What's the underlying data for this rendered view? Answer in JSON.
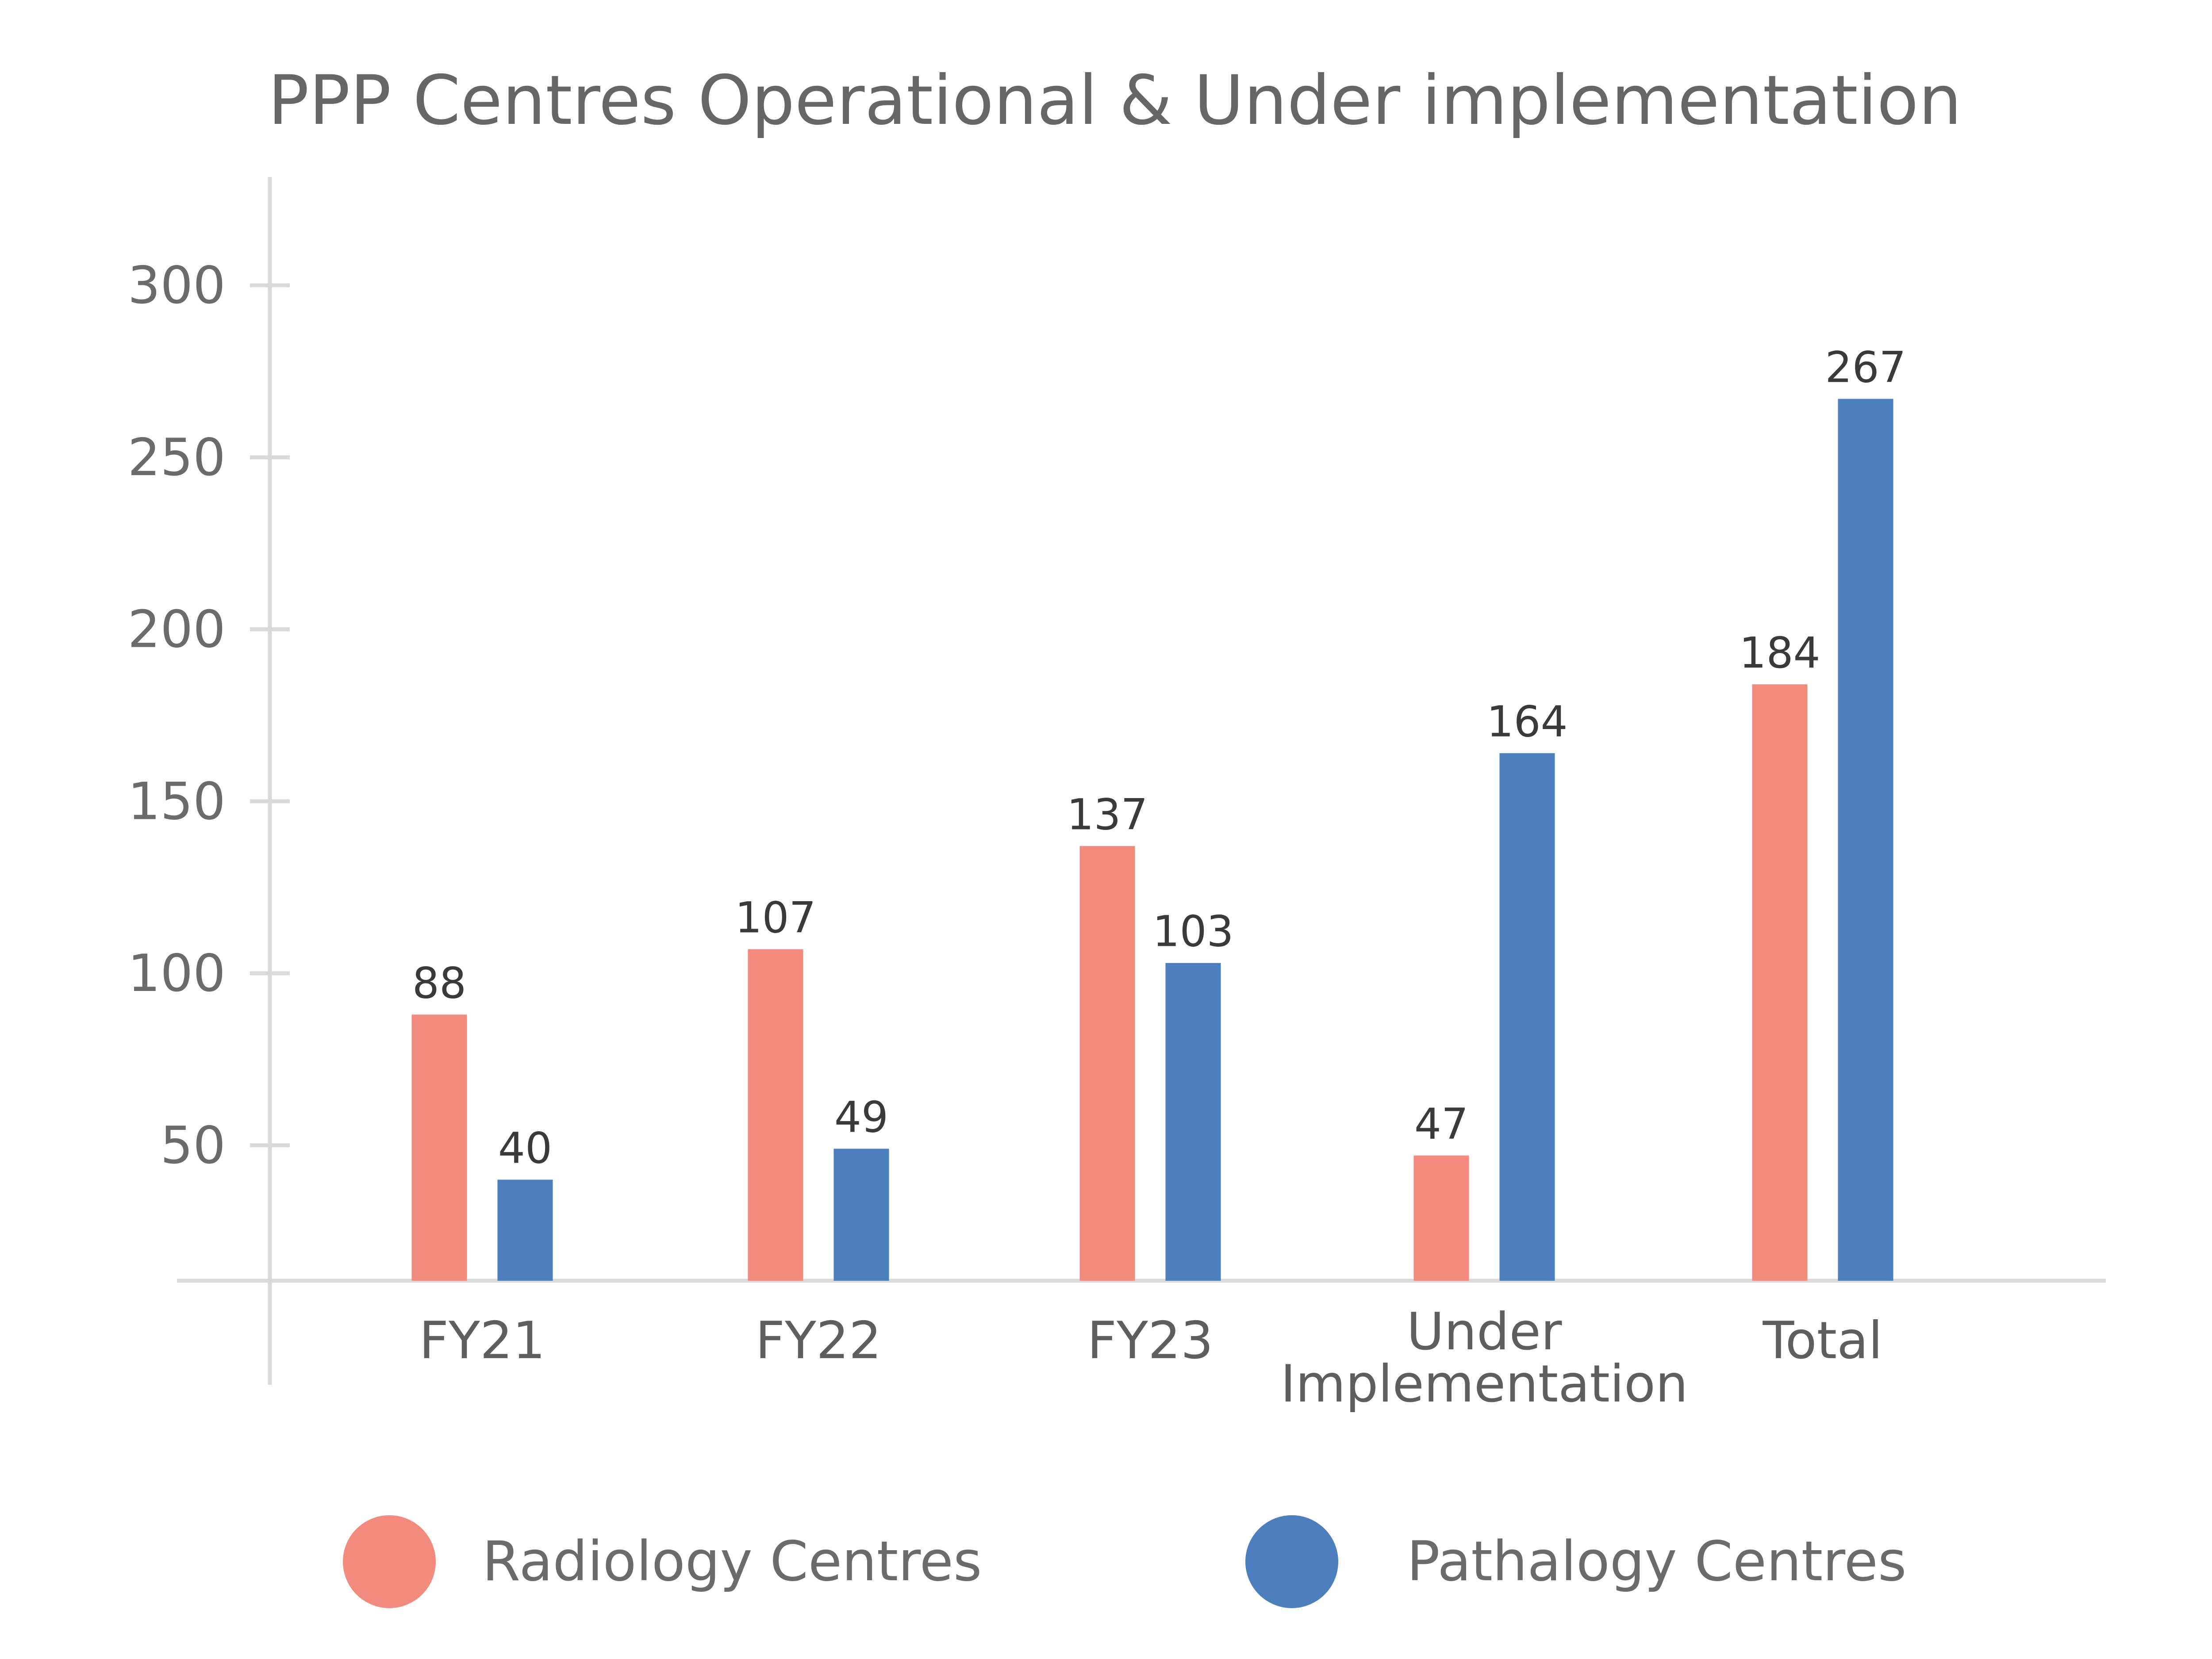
{
  "chart_data": {
    "type": "bar",
    "title": "PPP Centres Operational & Under implementation",
    "categories": [
      "FY21",
      "FY22",
      "FY23",
      "Under Implementation",
      "Total"
    ],
    "category_lines": [
      [
        "FY21"
      ],
      [
        "FY22"
      ],
      [
        "FY23"
      ],
      [
        "Under",
        "Implementation"
      ],
      [
        "Total"
      ]
    ],
    "series": [
      {
        "name": "Radiology Centres",
        "color": "#f28b7d",
        "values": [
          88,
          107,
          137,
          47,
          184
        ]
      },
      {
        "name": "Pathalogy Centres",
        "color": "#4d7ebe",
        "values": [
          40,
          49,
          103,
          164,
          267
        ]
      }
    ],
    "yticks": [
      50,
      100,
      150,
      200,
      250,
      300
    ],
    "ylim": [
      0,
      320
    ],
    "xlabel": "",
    "ylabel": "",
    "legend_position": "bottom",
    "grid": false
  }
}
